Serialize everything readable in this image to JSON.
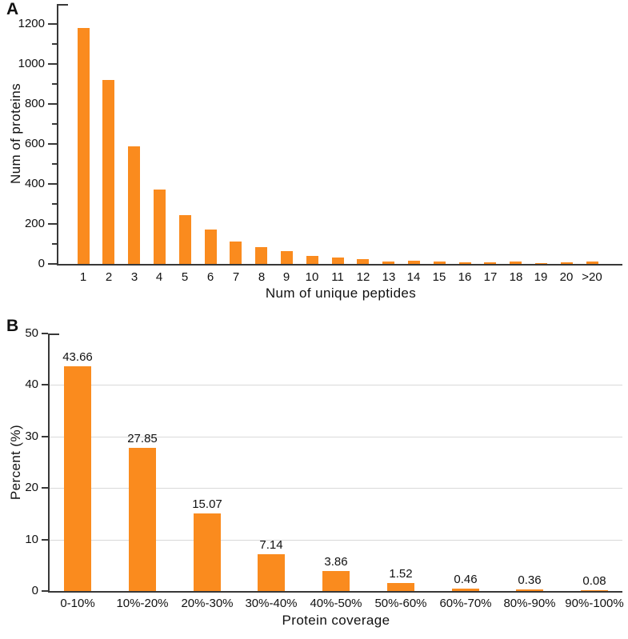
{
  "figure": {
    "bar_color": "#fa8b1e",
    "axis_color": "#383838",
    "grid_color": "#d9d9d9",
    "panels": [
      {
        "letter": "A"
      },
      {
        "letter": "B"
      }
    ]
  },
  "chart_data": [
    {
      "type": "bar",
      "title": "",
      "xlabel": "Num of unique peptides",
      "ylabel": "Num of proteins",
      "categories": [
        "1",
        "2",
        "3",
        "4",
        "5",
        "6",
        "7",
        "8",
        "9",
        "10",
        "11",
        "12",
        "13",
        "14",
        "15",
        "16",
        "17",
        "18",
        "19",
        "20",
        ">20"
      ],
      "values": [
        1180,
        920,
        590,
        372,
        243,
        172,
        113,
        84,
        64,
        40,
        31,
        24,
        14,
        16,
        12,
        9,
        10,
        13,
        5,
        7,
        12
      ],
      "ylim": [
        0,
        1300
      ],
      "ytick_step": 200,
      "ytick_max": 1200,
      "yminor_step": 100,
      "grid": false,
      "show_values": false,
      "legend": "none"
    },
    {
      "type": "bar",
      "title": "",
      "xlabel": "Protein coverage",
      "ylabel": "Percent (%)",
      "categories": [
        "0-10%",
        "10%-20%",
        "20%-30%",
        "30%-40%",
        "40%-50%",
        "50%-60%",
        "60%-70%",
        "80%-90%",
        "90%-100%"
      ],
      "values": [
        43.66,
        27.85,
        15.07,
        7.14,
        3.86,
        1.52,
        0.46,
        0.36,
        0.08
      ],
      "value_labels": [
        "43.66",
        "27.85",
        "15.07",
        "7.14",
        "3.86",
        "1.52",
        "0.46",
        "0.36",
        "0.08"
      ],
      "ylim": [
        0,
        50
      ],
      "ytick_step": 10,
      "ytick_max": 50,
      "yminor_step": 0,
      "grid": true,
      "show_values": true,
      "legend": "none"
    }
  ]
}
